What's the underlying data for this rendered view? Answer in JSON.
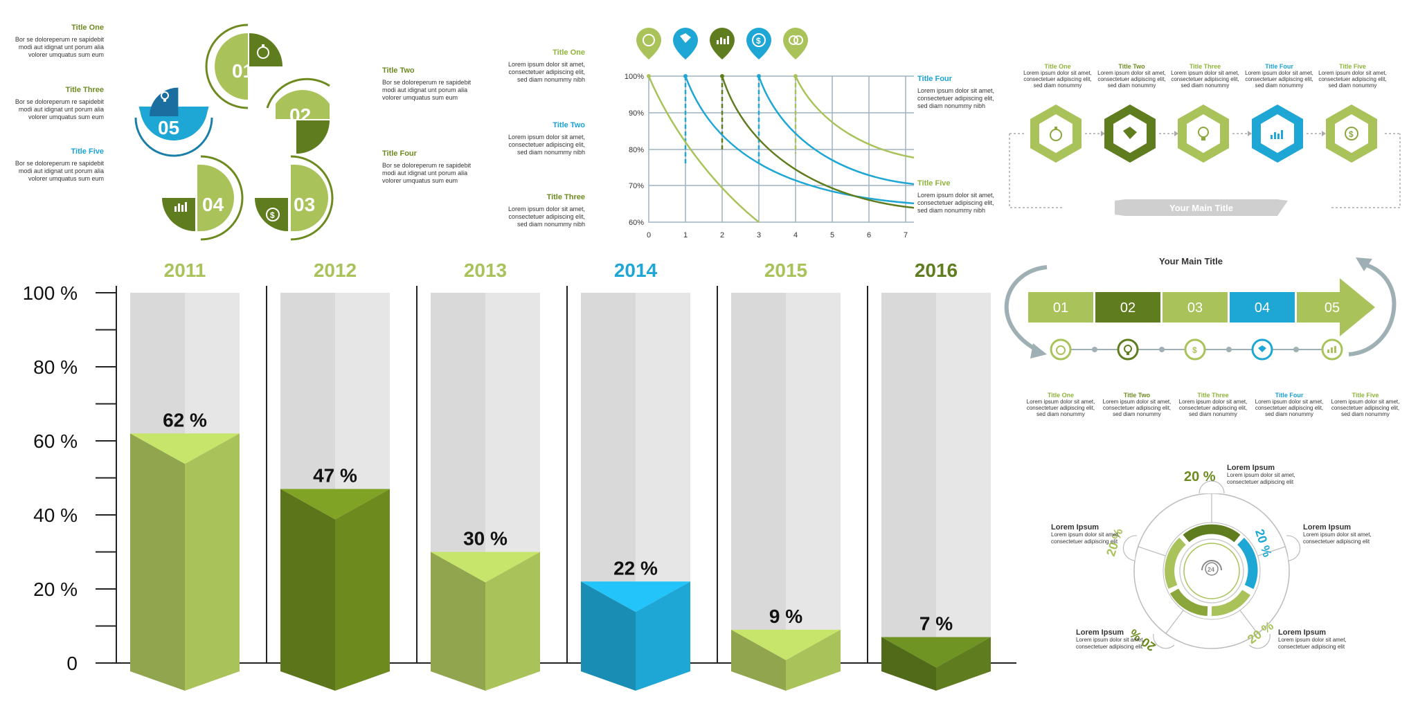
{
  "colors": {
    "light_green": "#a9c25a",
    "green": "#8ba63b",
    "dark_green": "#5f7d1e",
    "blue": "#1ea6d4",
    "gray": "#dedede",
    "panel_gray": "#e8e8e8"
  },
  "circle_infographic": {
    "items": [
      {
        "num": "01",
        "icon": "stopwatch-icon"
      },
      {
        "num": "02",
        "icon": "none"
      },
      {
        "num": "03",
        "icon": "dollar-cycle-icon"
      },
      {
        "num": "04",
        "icon": "bar-chart-icon"
      },
      {
        "num": "05",
        "icon": "lightbulb-icon"
      }
    ],
    "labels_left": [
      {
        "title": "Title One",
        "text": "Bor se doloreperum re sapidebit modi aut idignat unt porum alia volorer umquatus sum eum"
      },
      {
        "title": "Title Three",
        "text": "Bor se doloreperum re sapidebit modi aut idignat unt porum alia volorer umquatus sum eum"
      },
      {
        "title": "Title Five",
        "text": "Bor se doloreperum re sapidebit modi aut idignat unt porum alia volorer umquatus sum eum"
      }
    ],
    "labels_right": [
      {
        "title": "Title Two",
        "text": "Bor se doloreperum re sapidebit modi aut idignat unt porum alia volorer umquatus sum eum"
      },
      {
        "title": "Title Four",
        "text": "Bor se doloreperum re sapidebit modi aut idignat unt porum alia volorer umquatus sum eum"
      }
    ]
  },
  "line_chart": {
    "labels_left": [
      {
        "title": "Title One",
        "text": "Lorem ipsum dolor sit amet, consectetuer adipiscing elit, sed diam nonummy nibh"
      },
      {
        "title": "Title Two",
        "text": "Lorem ipsum dolor sit amet, consectetuer adipiscing elit, sed diam nonummy nibh"
      },
      {
        "title": "Title Three",
        "text": "Lorem ipsum dolor sit amet, consectetuer adipiscing elit, sed diam nonummy nibh"
      }
    ],
    "labels_right": [
      {
        "title": "Title Four",
        "text": "Lorem ipsum dolor sit amet, consectetuer adipiscing elit, sed diam nonummy nibh"
      },
      {
        "title": "Title Five",
        "text": "Lorem ipsum dolor sit amet, consectetuer adipiscing elit, sed diam nonummy nibh"
      }
    ],
    "pins": [
      "stopwatch-icon",
      "puzzle-icon",
      "bar-chart-icon",
      "dollar-cycle-icon",
      "brain-icon"
    ],
    "y_ticks": [
      "100%",
      "90%",
      "80%",
      "70%",
      "60%"
    ],
    "x_ticks": [
      "0",
      "1",
      "2",
      "3",
      "4",
      "5",
      "6",
      "7"
    ]
  },
  "hexagon_process": {
    "steps": [
      {
        "title": "Title One",
        "text": "Lorem ipsum dolor sit amet, consectetuer adipiscing elit, sed diam nonummy",
        "icon": "stopwatch-icon"
      },
      {
        "title": "Title Two",
        "text": "Lorem ipsum dolor sit amet, consectetuer adipiscing elit, sed diam nonummy",
        "icon": "puzzle-icon"
      },
      {
        "title": "Title Three",
        "text": "Lorem ipsum dolor sit amet, consectetuer adipiscing elit, sed diam nonummy",
        "icon": "lightbulb-icon"
      },
      {
        "title": "Title Four",
        "text": "Lorem ipsum dolor sit amet, consectetuer adipiscing elit, sed diam nonummy",
        "icon": "bar-chart-icon"
      },
      {
        "title": "Title Five",
        "text": "Lorem ipsum dolor sit amet, consectetuer adipiscing elit, sed diam nonummy",
        "icon": "dollar-cycle-icon"
      }
    ],
    "main_title": "Your Main Title"
  },
  "arrow_process": {
    "main_title": "Your Main Title",
    "segments": [
      "01",
      "02",
      "03",
      "04",
      "05"
    ],
    "icons": [
      "stopwatch-icon",
      "lightbulb-icon",
      "dollar-cycle-icon",
      "puzzle-icon",
      "bar-chart-icon"
    ],
    "steps": [
      {
        "title": "Title One",
        "text": "Lorem ipsum dolor sit amet, consectetuer adipiscing elit, sed diam nonummy"
      },
      {
        "title": "Title Two",
        "text": "Lorem ipsum dolor sit amet, consectetuer adipiscing elit, sed diam nonummy"
      },
      {
        "title": "Title Three",
        "text": "Lorem ipsum dolor sit amet, consectetuer adipiscing elit, sed diam nonummy"
      },
      {
        "title": "Title Four",
        "text": "Lorem ipsum dolor sit amet, consectetuer adipiscing elit, sed diam nonummy"
      },
      {
        "title": "Title Five",
        "text": "Lorem ipsum dolor sit amet, consectetuer adipiscing elit, sed diam nonummy"
      }
    ]
  },
  "donut": {
    "labels": [
      {
        "pct": "20 %",
        "title": "Lorem Ipsum",
        "text": "Lorem ipsum dolor sit amet, consectetuer adipiscing elit"
      },
      {
        "pct": "20 %",
        "title": "Lorem Ipsum",
        "text": "Lorem ipsum dolor sit amet, consectetuer adipiscing elit"
      },
      {
        "pct": "20 %",
        "title": "Lorem Ipsum",
        "text": "Lorem ipsum dolor sit amet, consectetuer adipiscing elit"
      },
      {
        "pct": "20 %",
        "title": "Lorem Ipsum",
        "text": "Lorem ipsum dolor sit amet, consectetuer adipiscing elit"
      },
      {
        "pct": "20 %",
        "title": "Lorem Ipsum",
        "text": "Lorem ipsum dolor sit amet, consectetuer adipiscing elit"
      }
    ],
    "center_icon": "headset-24-icon"
  },
  "chart_data": {
    "type": "bar",
    "categories": [
      "2011",
      "2012",
      "2013",
      "2014",
      "2015",
      "2016"
    ],
    "values": [
      62,
      47,
      30,
      22,
      9,
      7
    ],
    "value_labels": [
      "62 %",
      "47 %",
      "30 %",
      "22 %",
      "9 %",
      "7 %"
    ],
    "y_ticks": [
      "100 %",
      "80 %",
      "60 %",
      "40 %",
      "20 %",
      "0"
    ],
    "ylim": [
      0,
      100
    ],
    "bar_colors": [
      "#a9c25a",
      "#6d8a1f",
      "#a9c25a",
      "#1ea6d4",
      "#a9c25a",
      "#5f7d1e"
    ],
    "year_colors": [
      "#a9c25a",
      "#a9c25a",
      "#a9c25a",
      "#1ea6d4",
      "#a9c25a",
      "#5f7d1e"
    ]
  }
}
